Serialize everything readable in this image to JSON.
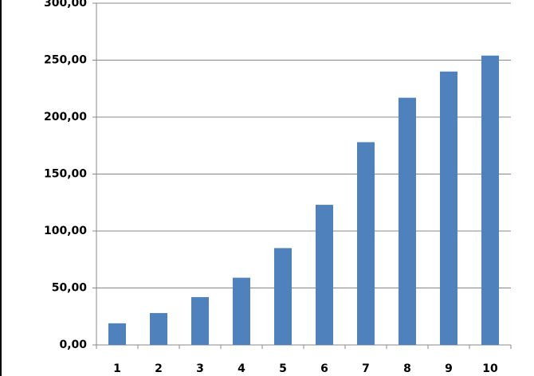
{
  "chart_data": {
    "type": "bar",
    "categories": [
      "1",
      "2",
      "3",
      "4",
      "5",
      "6",
      "7",
      "8",
      "9",
      "10"
    ],
    "values": [
      19,
      28,
      42,
      59,
      85,
      123,
      178,
      217,
      240,
      254
    ],
    "color": "#4f81bd",
    "ylim": [
      0,
      300
    ],
    "yticks": [
      {
        "value": 0,
        "label": "0,00"
      },
      {
        "value": 50,
        "label": "50,00"
      },
      {
        "value": 100,
        "label": "100,00"
      },
      {
        "value": 150,
        "label": "150,00"
      },
      {
        "value": 200,
        "label": "200,00"
      },
      {
        "value": 250,
        "label": "250,00"
      },
      {
        "value": 300,
        "label": "300,00"
      }
    ],
    "grid": true
  }
}
